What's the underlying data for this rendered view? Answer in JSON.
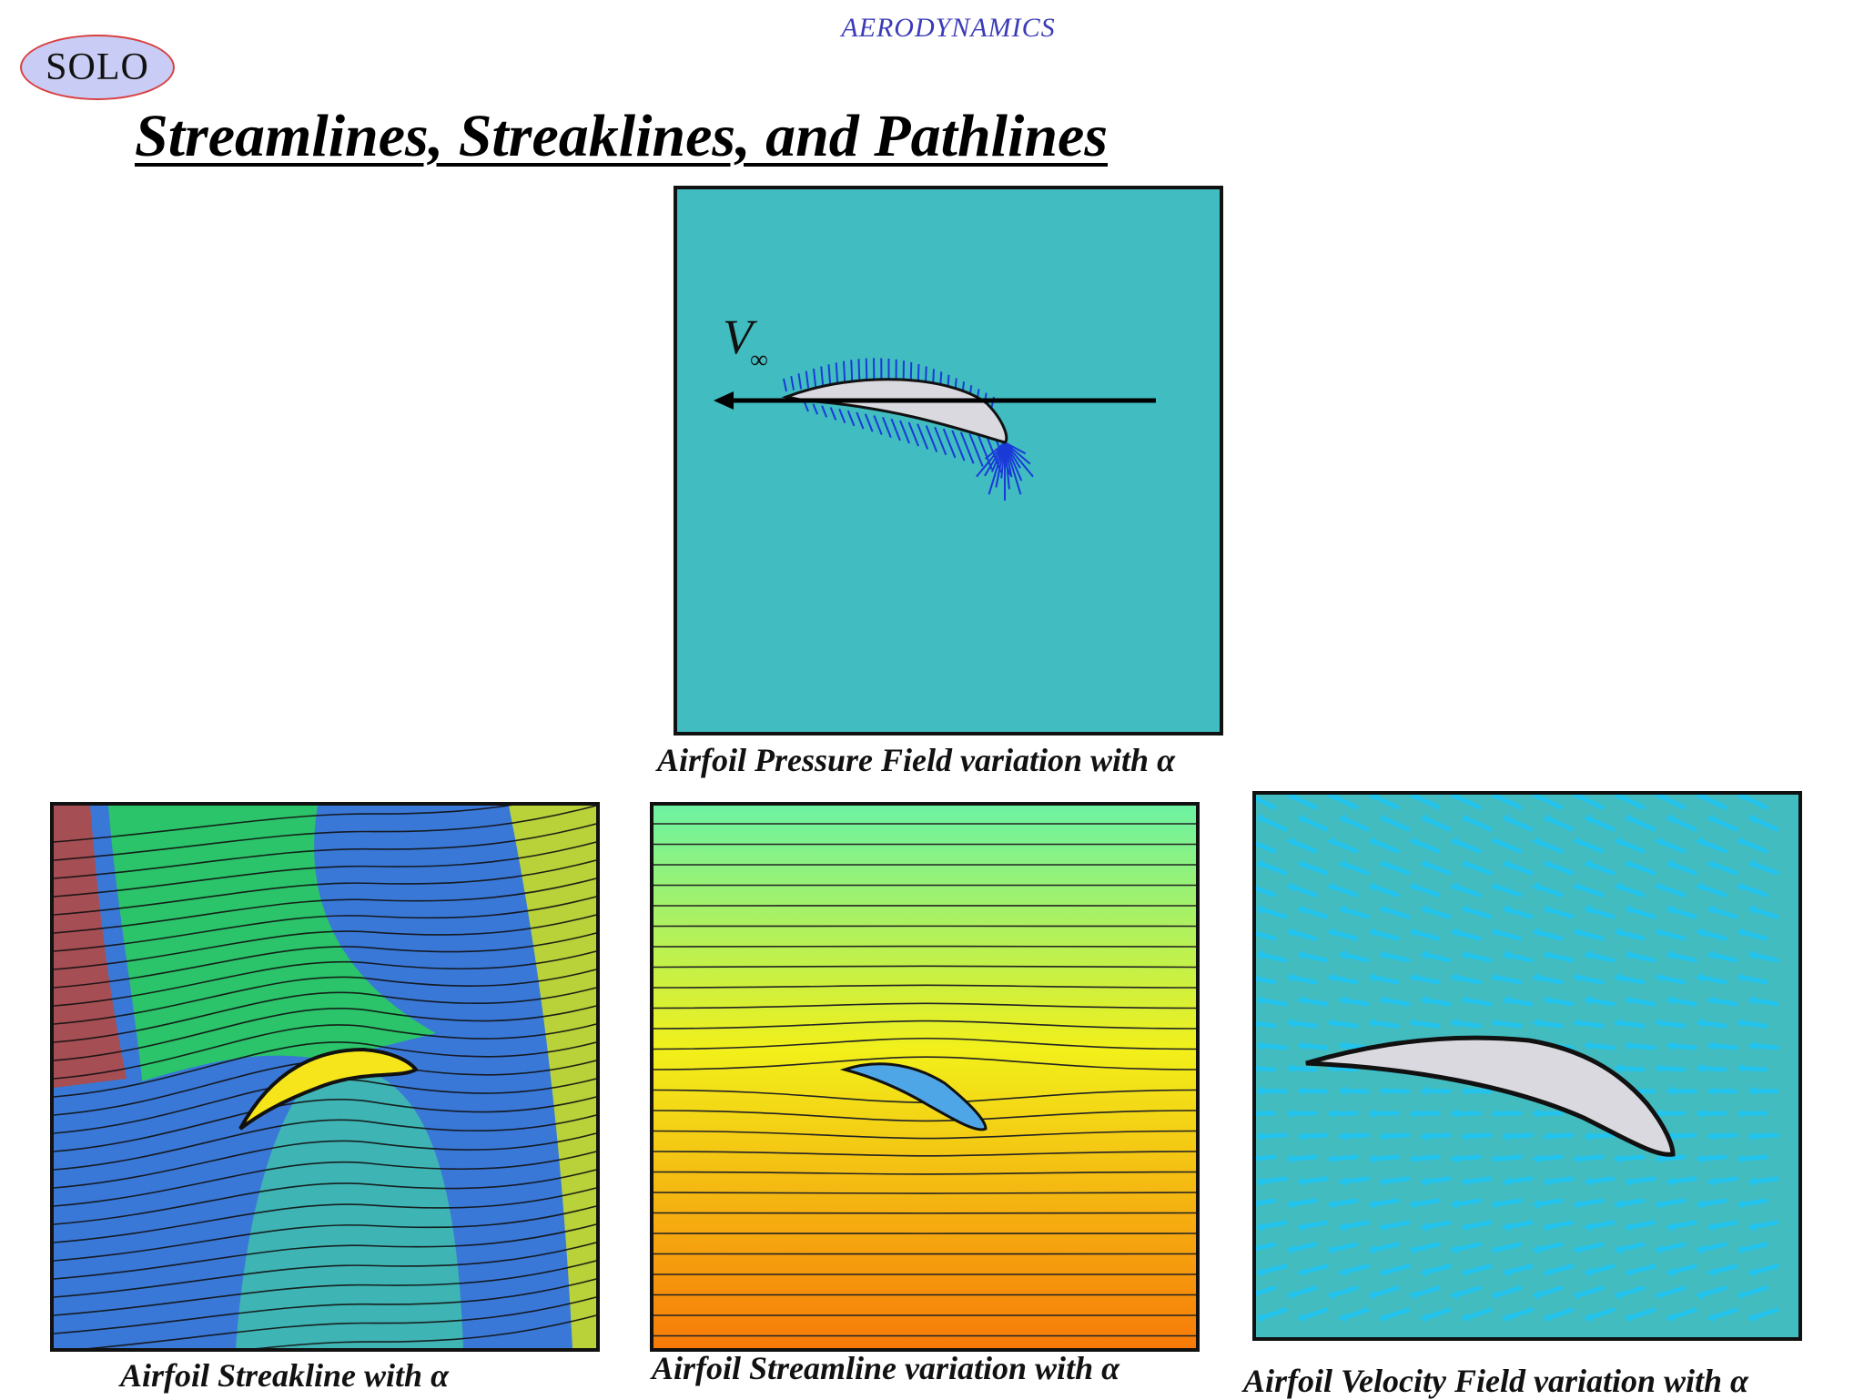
{
  "header": {
    "section": "AERODYNAMICS",
    "badge": "SOLO"
  },
  "page_title": "Streamlines, Streaklines, and Pathlines",
  "figures": {
    "pressure": {
      "caption": "Airfoil Pressure Field variation with α",
      "velocity_symbol": "V",
      "velocity_subscript": "∞",
      "colors": {
        "background": "#41bcc0",
        "airfoil": "#d9d9df",
        "vectors": "#1a3ad8"
      }
    },
    "streakline": {
      "caption": "Airfoil Streakline with α",
      "colors": {
        "green": "#2bc46a",
        "blue": "#3a78d8",
        "teal": "#3fb4b4",
        "airfoil": "#f6e51a",
        "red": "#b8463c",
        "yellow": "#b9d23a"
      }
    },
    "streamline": {
      "caption": "Airfoil Streamline variation with α",
      "colors": {
        "top": "#6cf2a2",
        "middle": "#f2f01a",
        "bottom": "#f77a08",
        "airfoil": "#4fa6e6"
      }
    },
    "velocity": {
      "caption": "Airfoil Velocity Field variation with α",
      "colors": {
        "background": "#43bcc0",
        "arrows": "#22c4ee",
        "airfoil": "#d9d9df"
      }
    }
  }
}
